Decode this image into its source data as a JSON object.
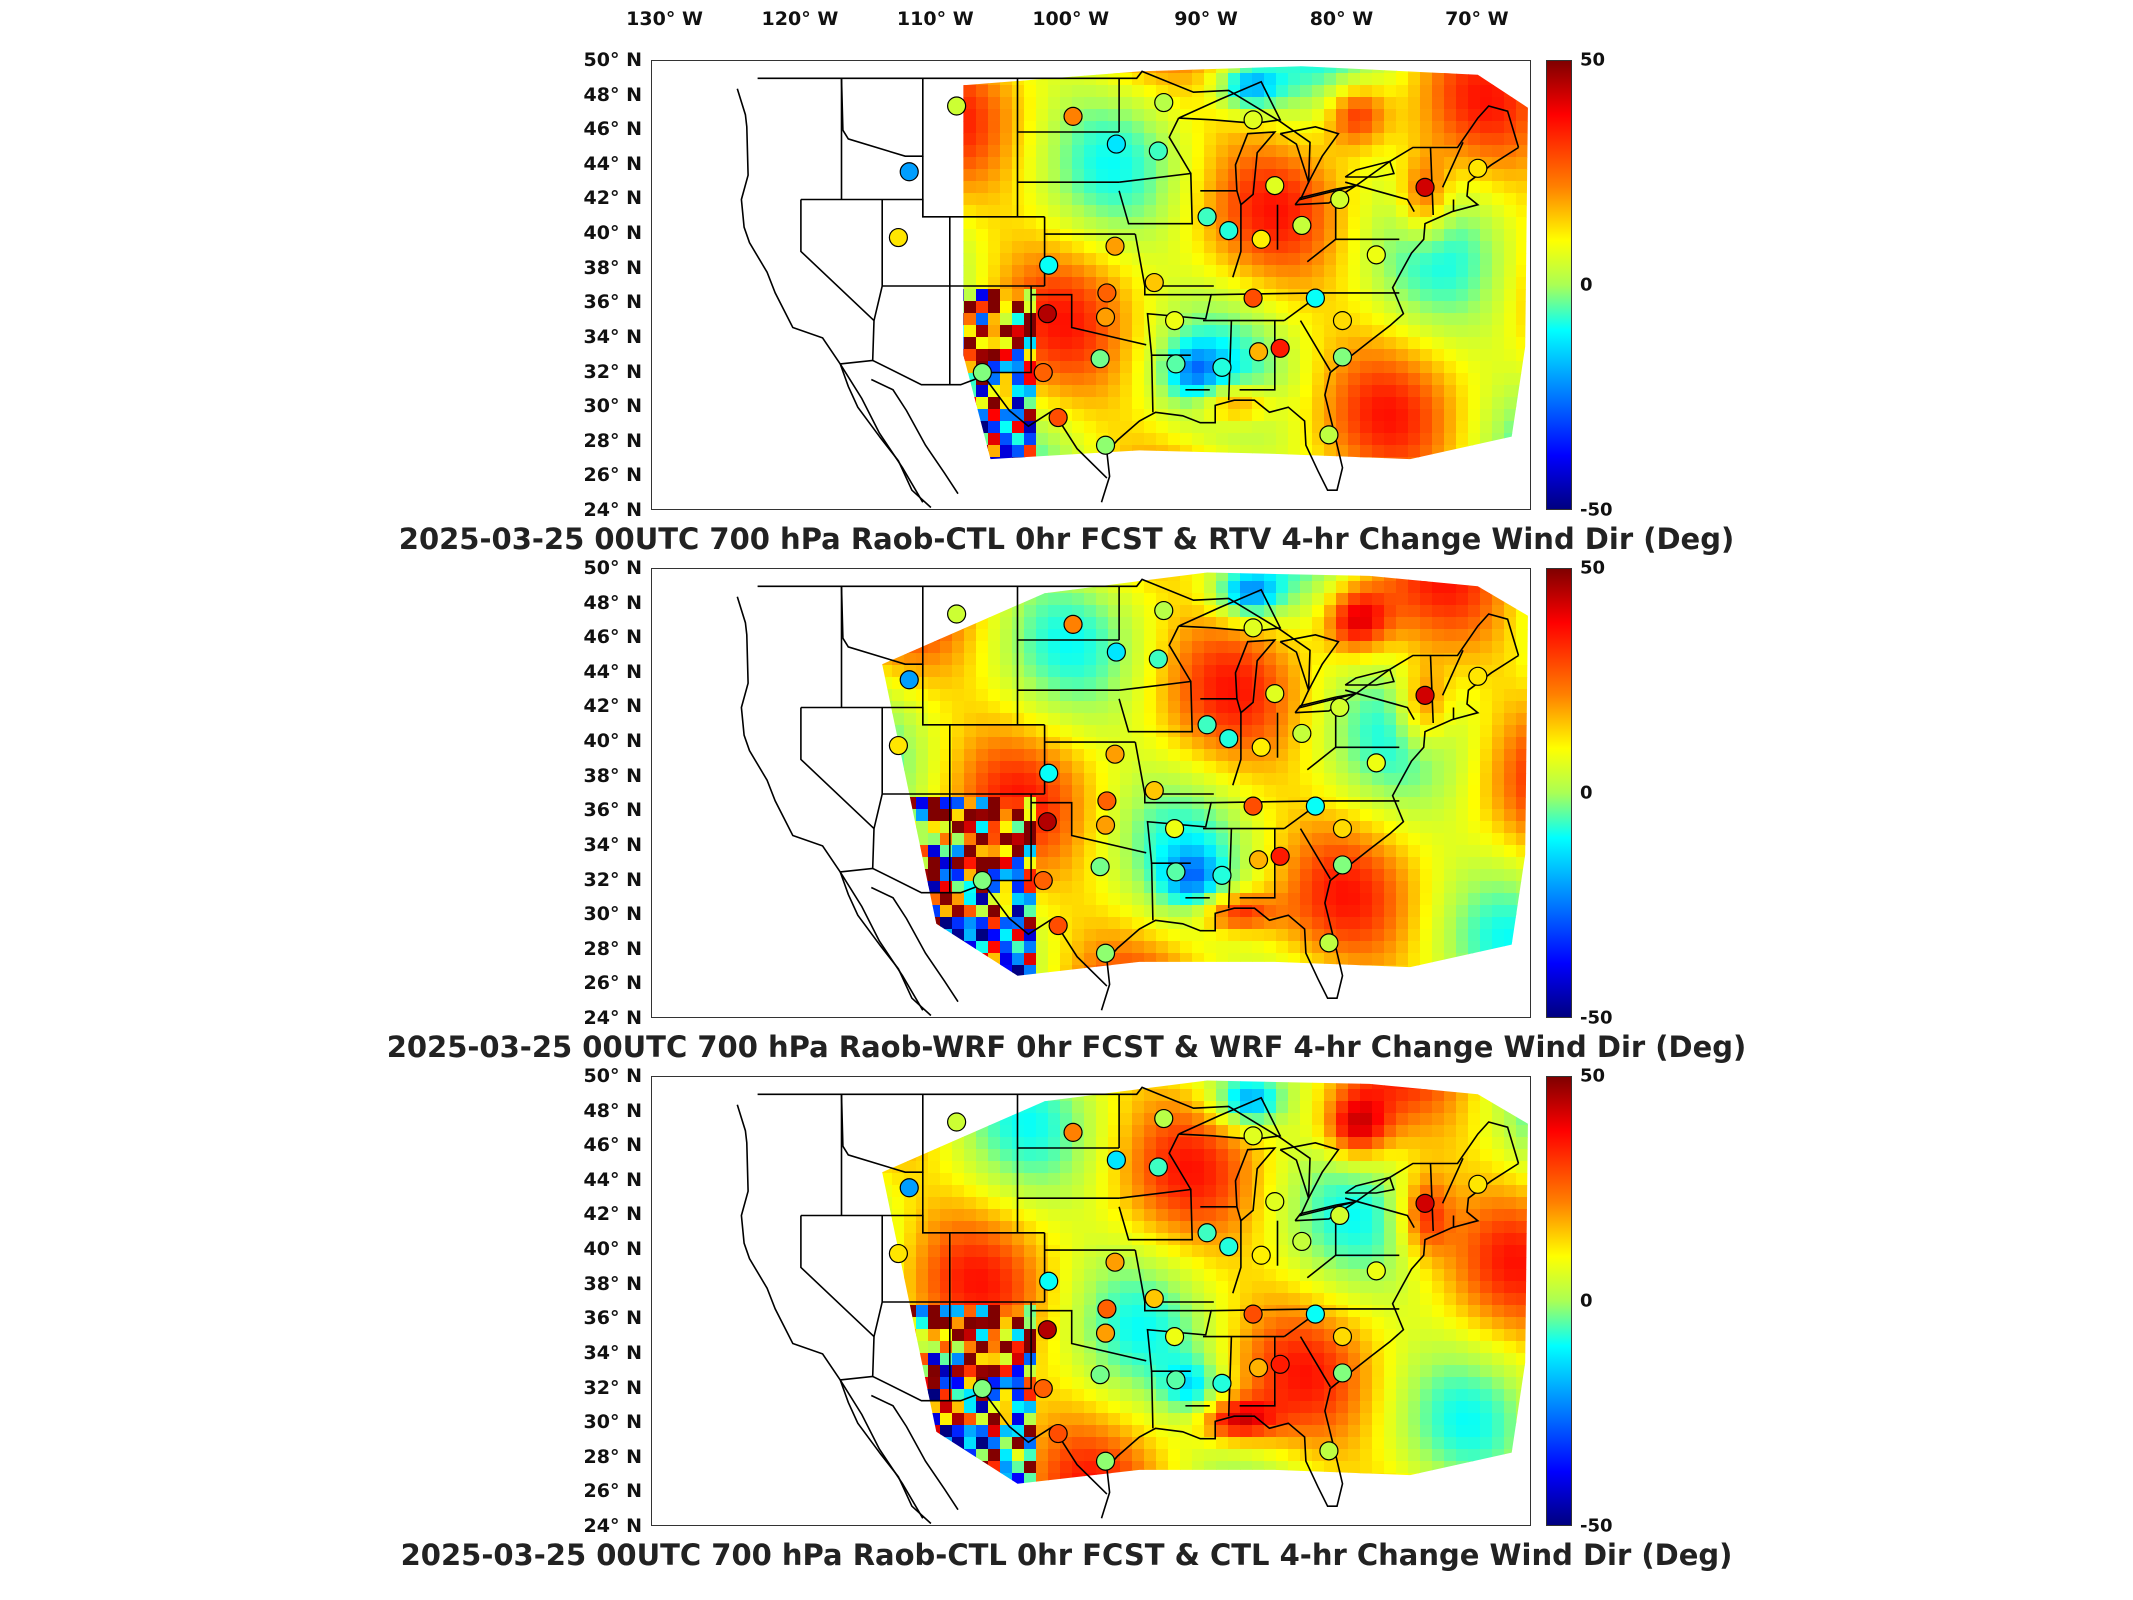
{
  "longitude_labels": [
    "130° W",
    "120° W",
    "110° W",
    "100° W",
    "90° W",
    "80° W",
    "70° W"
  ],
  "latitude_labels": [
    "50° N",
    "48° N",
    "46° N",
    "44° N",
    "42° N",
    "40° N",
    "38° N",
    "36° N",
    "34° N",
    "32° N",
    "30° N",
    "28° N",
    "26° N",
    "24° N"
  ],
  "colorbar": {
    "max_label": "50",
    "mid_label": "0",
    "min_label": "-50",
    "min": -50,
    "max": 50
  },
  "colormap": [
    "#000080",
    "#0000ff",
    "#0080ff",
    "#00ffff",
    "#aaff55",
    "#ffff00",
    "#ff8000",
    "#ff0000",
    "#800000"
  ],
  "panels": [
    {
      "title": "2025-03-25 00UTC 700 hPa Raob-CTL 0hr FCST & RTV 4-hr Change Wind Dir (Deg)",
      "domain": "rtv"
    },
    {
      "title": "2025-03-25 00UTC 700 hPa Raob-WRF 0hr FCST & WRF 4-hr Change Wind Dir (Deg)",
      "domain": "wrf"
    },
    {
      "title": "2025-03-25 00UTC 700 hPa Raob-CTL 0hr FCST & CTL 4-hr Change Wind Dir (Deg)",
      "domain": "wrf"
    }
  ],
  "stations": [
    {
      "lon": -108.5,
      "lat": 47.4,
      "v": 5
    },
    {
      "lon": -99.9,
      "lat": 46.8,
      "v": 25
    },
    {
      "lon": -93.2,
      "lat": 47.6,
      "v": 2
    },
    {
      "lon": -93.6,
      "lat": 44.8,
      "v": -8
    },
    {
      "lon": -86.6,
      "lat": 46.6,
      "v": 8
    },
    {
      "lon": -96.7,
      "lat": 45.2,
      "v": -15
    },
    {
      "lon": -112.0,
      "lat": 43.6,
      "v": -22
    },
    {
      "lon": -112.8,
      "lat": 39.8,
      "v": 15
    },
    {
      "lon": -101.7,
      "lat": 38.2,
      "v": -12
    },
    {
      "lon": -96.8,
      "lat": 39.3,
      "v": 22
    },
    {
      "lon": -93.9,
      "lat": 37.2,
      "v": 18
    },
    {
      "lon": -92.4,
      "lat": 35.0,
      "v": 10
    },
    {
      "lon": -97.4,
      "lat": 36.6,
      "v": 28
    },
    {
      "lon": -97.5,
      "lat": 35.2,
      "v": 22
    },
    {
      "lon": -101.8,
      "lat": 35.4,
      "v": 45
    },
    {
      "lon": -102.1,
      "lat": 32.0,
      "v": 28
    },
    {
      "lon": -106.6,
      "lat": 32.0,
      "v": -3
    },
    {
      "lon": -97.9,
      "lat": 32.8,
      "v": -4
    },
    {
      "lon": -92.3,
      "lat": 32.5,
      "v": -6
    },
    {
      "lon": -88.9,
      "lat": 32.3,
      "v": -10
    },
    {
      "lon": -86.2,
      "lat": 33.2,
      "v": 20
    },
    {
      "lon": -84.6,
      "lat": 33.4,
      "v": 35
    },
    {
      "lon": -80.0,
      "lat": 32.9,
      "v": -3
    },
    {
      "lon": -97.5,
      "lat": 27.8,
      "v": -2
    },
    {
      "lon": -81.0,
      "lat": 28.4,
      "v": 3
    },
    {
      "lon": -101.0,
      "lat": 29.4,
      "v": 30
    },
    {
      "lon": -90.0,
      "lat": 41.0,
      "v": -8
    },
    {
      "lon": -88.4,
      "lat": 40.2,
      "v": -10
    },
    {
      "lon": -86.0,
      "lat": 39.7,
      "v": 14
    },
    {
      "lon": -83.0,
      "lat": 40.5,
      "v": 4
    },
    {
      "lon": -86.6,
      "lat": 36.3,
      "v": 30
    },
    {
      "lon": -82.0,
      "lat": 36.3,
      "v": -12
    },
    {
      "lon": -80.0,
      "lat": 35.0,
      "v": 16
    },
    {
      "lon": -77.5,
      "lat": 38.8,
      "v": 10
    },
    {
      "lon": -73.9,
      "lat": 42.7,
      "v": 42
    },
    {
      "lon": -70.0,
      "lat": 43.8,
      "v": 15
    },
    {
      "lon": -80.2,
      "lat": 42.0,
      "v": 6
    },
    {
      "lon": -85.0,
      "lat": 42.8,
      "v": 8
    }
  ]
}
